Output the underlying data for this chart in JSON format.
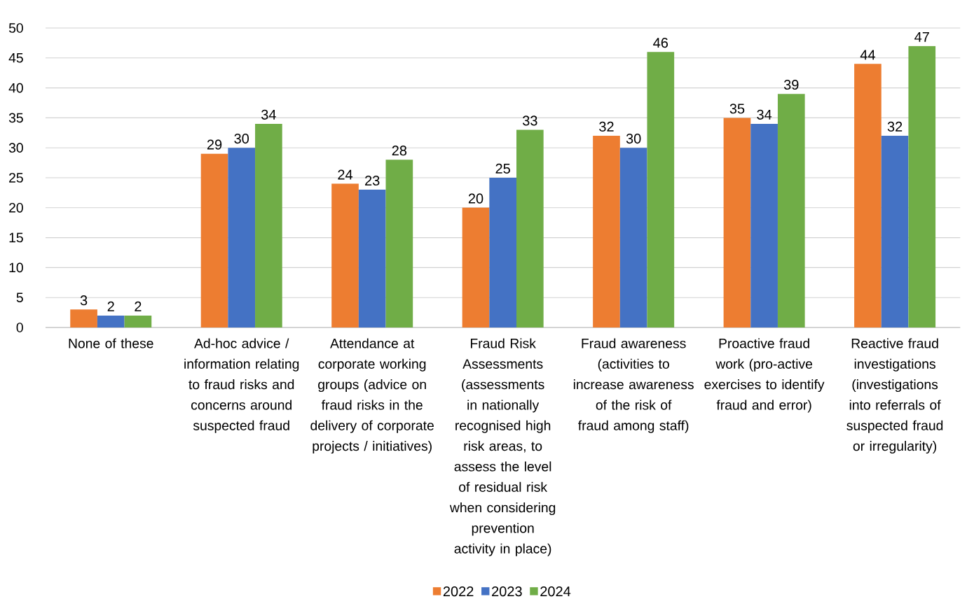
{
  "chart_data": {
    "type": "bar",
    "categories": [
      "None of these",
      "Ad-hoc advice / information relating to fraud risks and concerns around suspected fraud",
      "Attendance at corporate working groups (advice on fraud risks in the delivery of corporate projects / initiatives)",
      "Fraud Risk Assessments (assessments in nationally recognised high risk areas, to assess the level of residual risk when considering prevention activity in place)",
      "Fraud awareness (activities to increase awareness of the risk of fraud among staff)",
      "Proactive fraud work (pro-active exercises to identify fraud and error)",
      "Reactive fraud investigations (investigations into referrals of suspected fraud or irregularity)"
    ],
    "series": [
      {
        "name": "2022",
        "color": "#ed7d31",
        "values": [
          3,
          29,
          24,
          20,
          32,
          35,
          44
        ]
      },
      {
        "name": "2023",
        "color": "#4472c4",
        "values": [
          2,
          30,
          23,
          25,
          30,
          34,
          32
        ]
      },
      {
        "name": "2024",
        "color": "#70ad47",
        "values": [
          2,
          34,
          28,
          33,
          46,
          39,
          47
        ]
      }
    ],
    "ylim": [
      0,
      50
    ],
    "yticks": [
      0,
      5,
      10,
      15,
      20,
      25,
      30,
      35,
      40,
      45,
      50
    ],
    "grid": "y",
    "legend": "bottom",
    "data_labels": true
  }
}
